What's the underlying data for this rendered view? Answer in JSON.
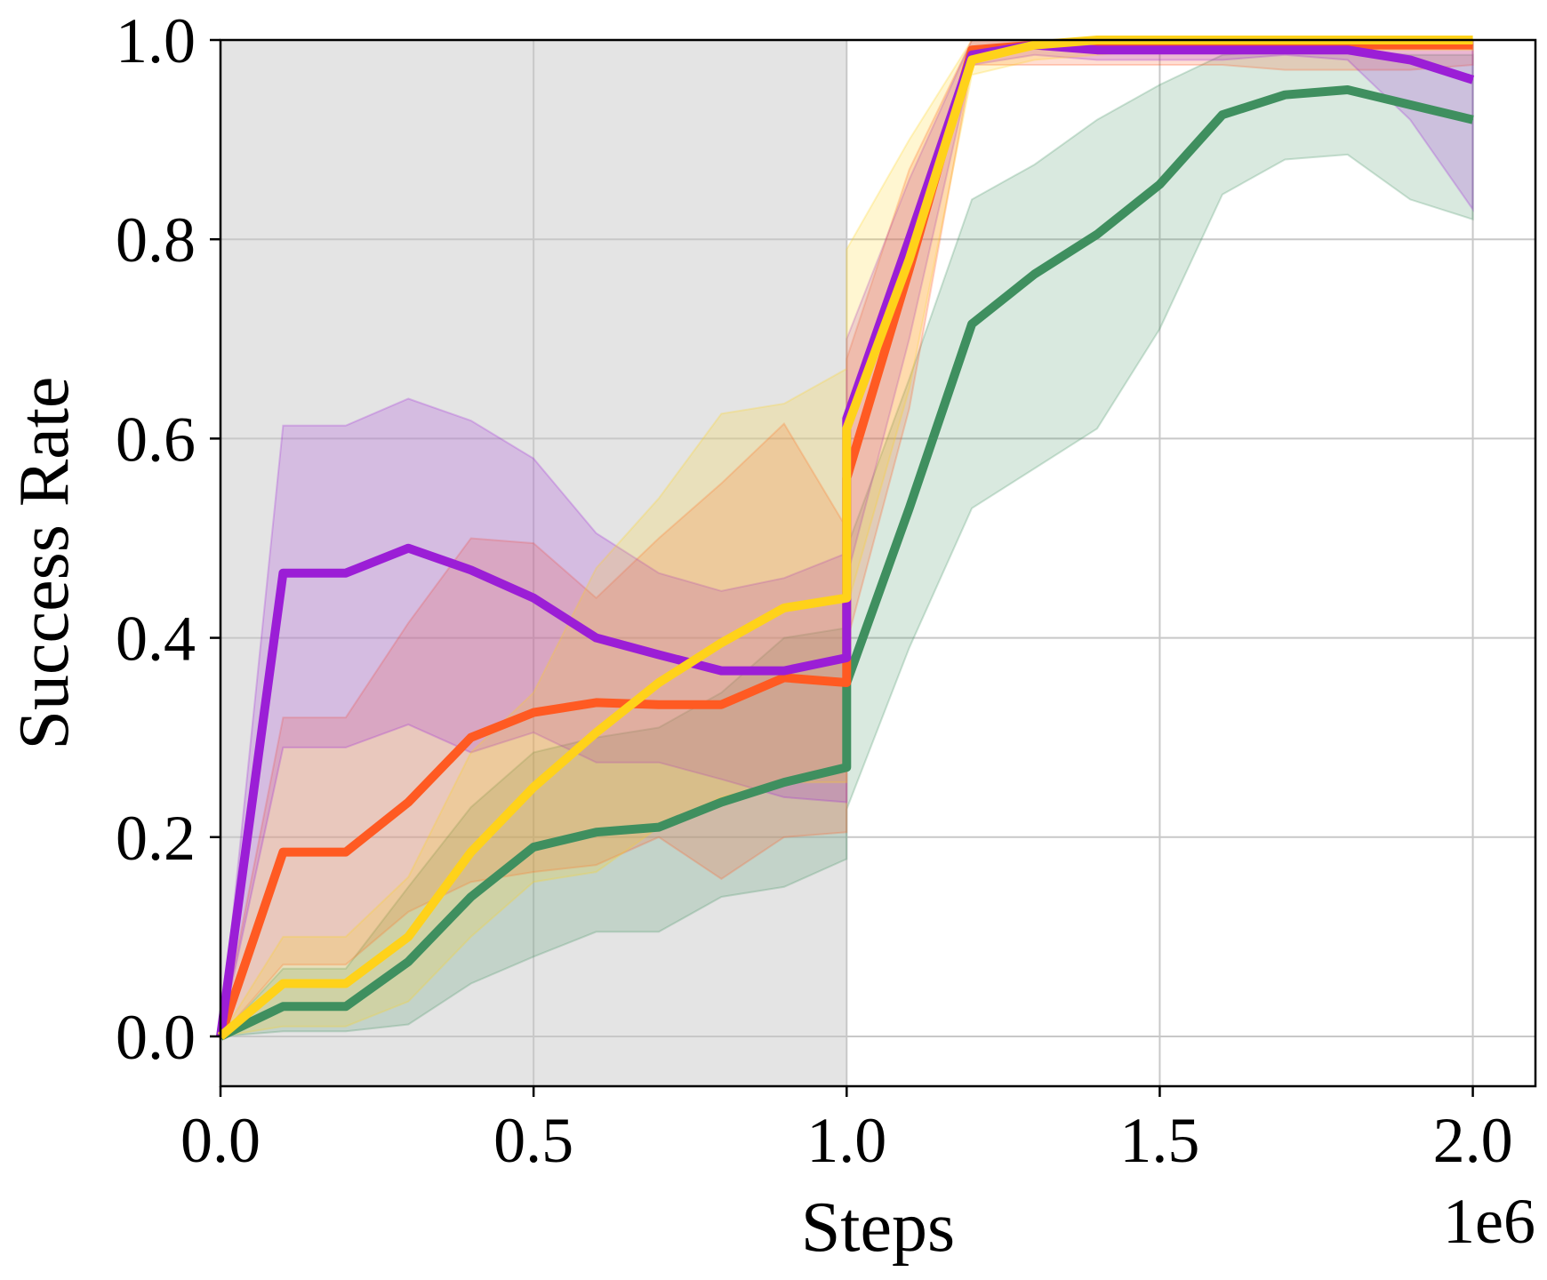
{
  "chart_data": {
    "type": "line",
    "title": "",
    "xlabel": "Steps",
    "ylabel": "Success Rate",
    "x_offset_label": "1e6",
    "xlim": [
      0.0,
      2.1
    ],
    "ylim": [
      -0.05,
      1.0
    ],
    "xticks": [
      0.0,
      0.5,
      1.0,
      1.5,
      2.0
    ],
    "xtick_labels": [
      "0.0",
      "0.5",
      "1.0",
      "1.5",
      "2.0"
    ],
    "yticks": [
      0.0,
      0.2,
      0.4,
      0.6,
      0.8,
      1.0
    ],
    "ytick_labels": [
      "0.0",
      "0.2",
      "0.4",
      "0.6",
      "0.8",
      "1.0"
    ],
    "grid": true,
    "shaded_region": {
      "x": [
        0.0,
        1.0
      ],
      "color": "#e4e4e4"
    },
    "x": [
      0.0,
      0.1,
      0.2,
      0.3,
      0.4,
      0.5,
      0.6,
      0.7,
      0.8,
      0.9,
      1.0,
      1.0,
      1.1,
      1.2,
      1.3,
      1.4,
      1.5,
      1.6,
      1.7,
      1.8,
      1.9,
      2.0
    ],
    "series": [
      {
        "name": "green",
        "color": "#3f8f5f",
        "values": [
          0.0,
          0.03,
          0.03,
          0.075,
          0.14,
          0.19,
          0.205,
          0.21,
          0.235,
          0.255,
          0.27,
          0.355,
          0.53,
          0.715,
          0.765,
          0.805,
          0.855,
          0.925,
          0.945,
          0.95,
          0.935,
          0.92
        ],
        "lower": [
          0.0,
          0.005,
          0.005,
          0.012,
          0.053,
          0.08,
          0.105,
          0.105,
          0.14,
          0.15,
          0.178,
          0.228,
          0.39,
          0.53,
          0.57,
          0.61,
          0.71,
          0.845,
          0.88,
          0.885,
          0.84,
          0.82
        ],
        "upper": [
          0.0,
          0.068,
          0.068,
          0.15,
          0.23,
          0.285,
          0.3,
          0.31,
          0.345,
          0.4,
          0.41,
          0.49,
          0.66,
          0.84,
          0.875,
          0.92,
          0.955,
          0.985,
          0.99,
          0.99,
          0.985,
          0.985
        ]
      },
      {
        "name": "orange",
        "color": "#ff5a22",
        "values": [
          0.0,
          0.185,
          0.185,
          0.235,
          0.3,
          0.325,
          0.335,
          0.333,
          0.333,
          0.36,
          0.355,
          0.56,
          0.77,
          0.99,
          0.995,
          0.995,
          0.995,
          0.995,
          0.995,
          0.995,
          0.995,
          0.995
        ],
        "lower": [
          0.0,
          0.072,
          0.072,
          0.125,
          0.155,
          0.165,
          0.172,
          0.2,
          0.158,
          0.2,
          0.205,
          0.395,
          0.63,
          0.975,
          0.975,
          0.975,
          0.975,
          0.975,
          0.97,
          0.97,
          0.97,
          0.975
        ],
        "upper": [
          0.0,
          0.32,
          0.32,
          0.415,
          0.5,
          0.495,
          0.44,
          0.5,
          0.555,
          0.615,
          0.51,
          0.68,
          0.87,
          1.0,
          1.0,
          1.0,
          1.0,
          1.0,
          1.0,
          1.0,
          1.0,
          1.0
        ]
      },
      {
        "name": "purple",
        "color": "#9b1ed6",
        "values": [
          0.0,
          0.465,
          0.465,
          0.49,
          0.468,
          0.44,
          0.4,
          0.383,
          0.367,
          0.367,
          0.38,
          0.62,
          0.8,
          0.985,
          0.995,
          0.99,
          0.99,
          0.99,
          0.99,
          0.99,
          0.98,
          0.96
        ],
        "lower": [
          0.0,
          0.29,
          0.29,
          0.313,
          0.285,
          0.305,
          0.275,
          0.275,
          0.258,
          0.24,
          0.235,
          0.46,
          0.7,
          0.975,
          0.985,
          0.98,
          0.98,
          0.98,
          0.985,
          0.98,
          0.92,
          0.83
        ],
        "upper": [
          0.0,
          0.613,
          0.613,
          0.64,
          0.618,
          0.58,
          0.505,
          0.465,
          0.447,
          0.46,
          0.485,
          0.7,
          0.86,
          1.0,
          1.0,
          1.0,
          1.0,
          1.0,
          1.0,
          1.0,
          1.0,
          1.0
        ]
      },
      {
        "name": "yellow",
        "color": "#ffd21a",
        "values": [
          0.0,
          0.053,
          0.053,
          0.1,
          0.185,
          0.25,
          0.305,
          0.355,
          0.395,
          0.43,
          0.44,
          0.61,
          0.78,
          0.98,
          0.995,
          1.0,
          1.0,
          1.0,
          1.0,
          1.0,
          1.0,
          1.0
        ],
        "lower": [
          0.0,
          0.01,
          0.01,
          0.035,
          0.1,
          0.155,
          0.165,
          0.21,
          0.24,
          0.255,
          0.255,
          0.43,
          0.65,
          0.965,
          0.98,
          0.985,
          0.99,
          0.99,
          0.99,
          0.99,
          0.99,
          0.99
        ],
        "upper": [
          0.0,
          0.1,
          0.1,
          0.16,
          0.285,
          0.345,
          0.47,
          0.54,
          0.625,
          0.635,
          0.67,
          0.79,
          0.9,
          1.0,
          1.0,
          1.0,
          1.0,
          1.0,
          1.0,
          1.0,
          1.0,
          1.0
        ]
      }
    ]
  }
}
